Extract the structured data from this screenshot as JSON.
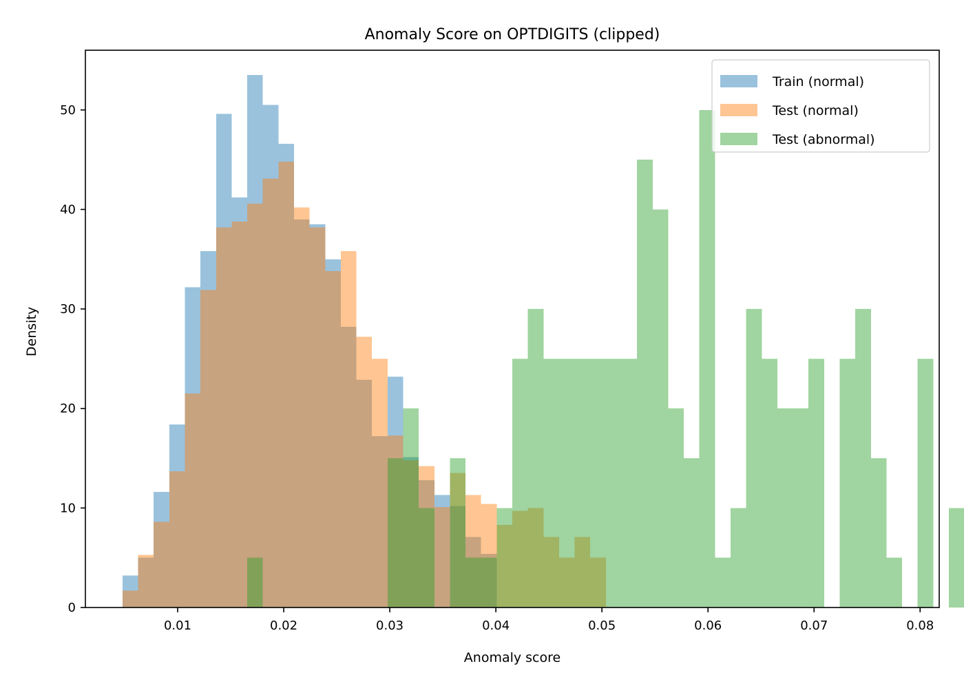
{
  "chart_data": {
    "type": "bar",
    "title": "Anomaly Score on OPTDIGITS (clipped)",
    "xlabel": "Anomaly score",
    "ylabel": "Density",
    "xlim": [
      0.0013,
      0.0818
    ],
    "ylim": [
      0,
      56
    ],
    "xticks": [
      0.01,
      0.02,
      0.03,
      0.04,
      0.05,
      0.06,
      0.07,
      0.08
    ],
    "xtick_labels": [
      "0.01",
      "0.02",
      "0.03",
      "0.04",
      "0.05",
      "0.06",
      "0.07",
      "0.08"
    ],
    "yticks": [
      0,
      10,
      20,
      30,
      40,
      50
    ],
    "ytick_labels": [
      "0",
      "10",
      "20",
      "30",
      "40",
      "50"
    ],
    "grid": false,
    "legend_position": "top-right",
    "series": [
      {
        "name": "Train (normal)",
        "color": "#1f77b4",
        "opacity": 0.45,
        "bin_start": 0.0048,
        "bin_width": 0.00147,
        "values": [
          3.2,
          5.0,
          11.6,
          18.4,
          32.2,
          35.8,
          49.6,
          41.2,
          53.5,
          50.5,
          46.6,
          39.0,
          38.5,
          35.0,
          28.2,
          22.9,
          17.2,
          23.2,
          15.1,
          12.8,
          11.3,
          10.2,
          7.1,
          5.4
        ]
      },
      {
        "name": "Test (normal)",
        "color": "#ff7f0e",
        "opacity": 0.45,
        "bin_start": 0.0048,
        "bin_width": 0.00147,
        "values": [
          1.7,
          5.3,
          8.6,
          13.7,
          21.5,
          31.9,
          38.2,
          38.8,
          40.6,
          43.1,
          44.8,
          40.2,
          38.2,
          33.8,
          35.8,
          27.2,
          25.0,
          17.3,
          14.8,
          14.2,
          10.1,
          13.5,
          11.3,
          10.4,
          8.3,
          9.7,
          10.0,
          7.1,
          5.0,
          7.1,
          5.0
        ]
      },
      {
        "name": "Test (abnormal)",
        "color": "#2ca02c",
        "opacity": 0.45,
        "bin_start": 0.01656,
        "bin_width": 0.00147,
        "values": [
          5,
          0,
          0,
          0,
          0,
          0,
          0,
          0,
          0,
          15,
          20,
          10,
          0,
          15,
          5,
          5,
          10,
          25,
          30,
          25,
          25,
          25,
          25,
          25,
          25,
          45,
          40,
          20,
          15,
          50,
          5,
          10,
          30,
          25,
          20,
          20,
          25,
          0,
          25,
          30,
          15,
          5,
          0,
          25,
          0,
          10
        ]
      }
    ]
  }
}
